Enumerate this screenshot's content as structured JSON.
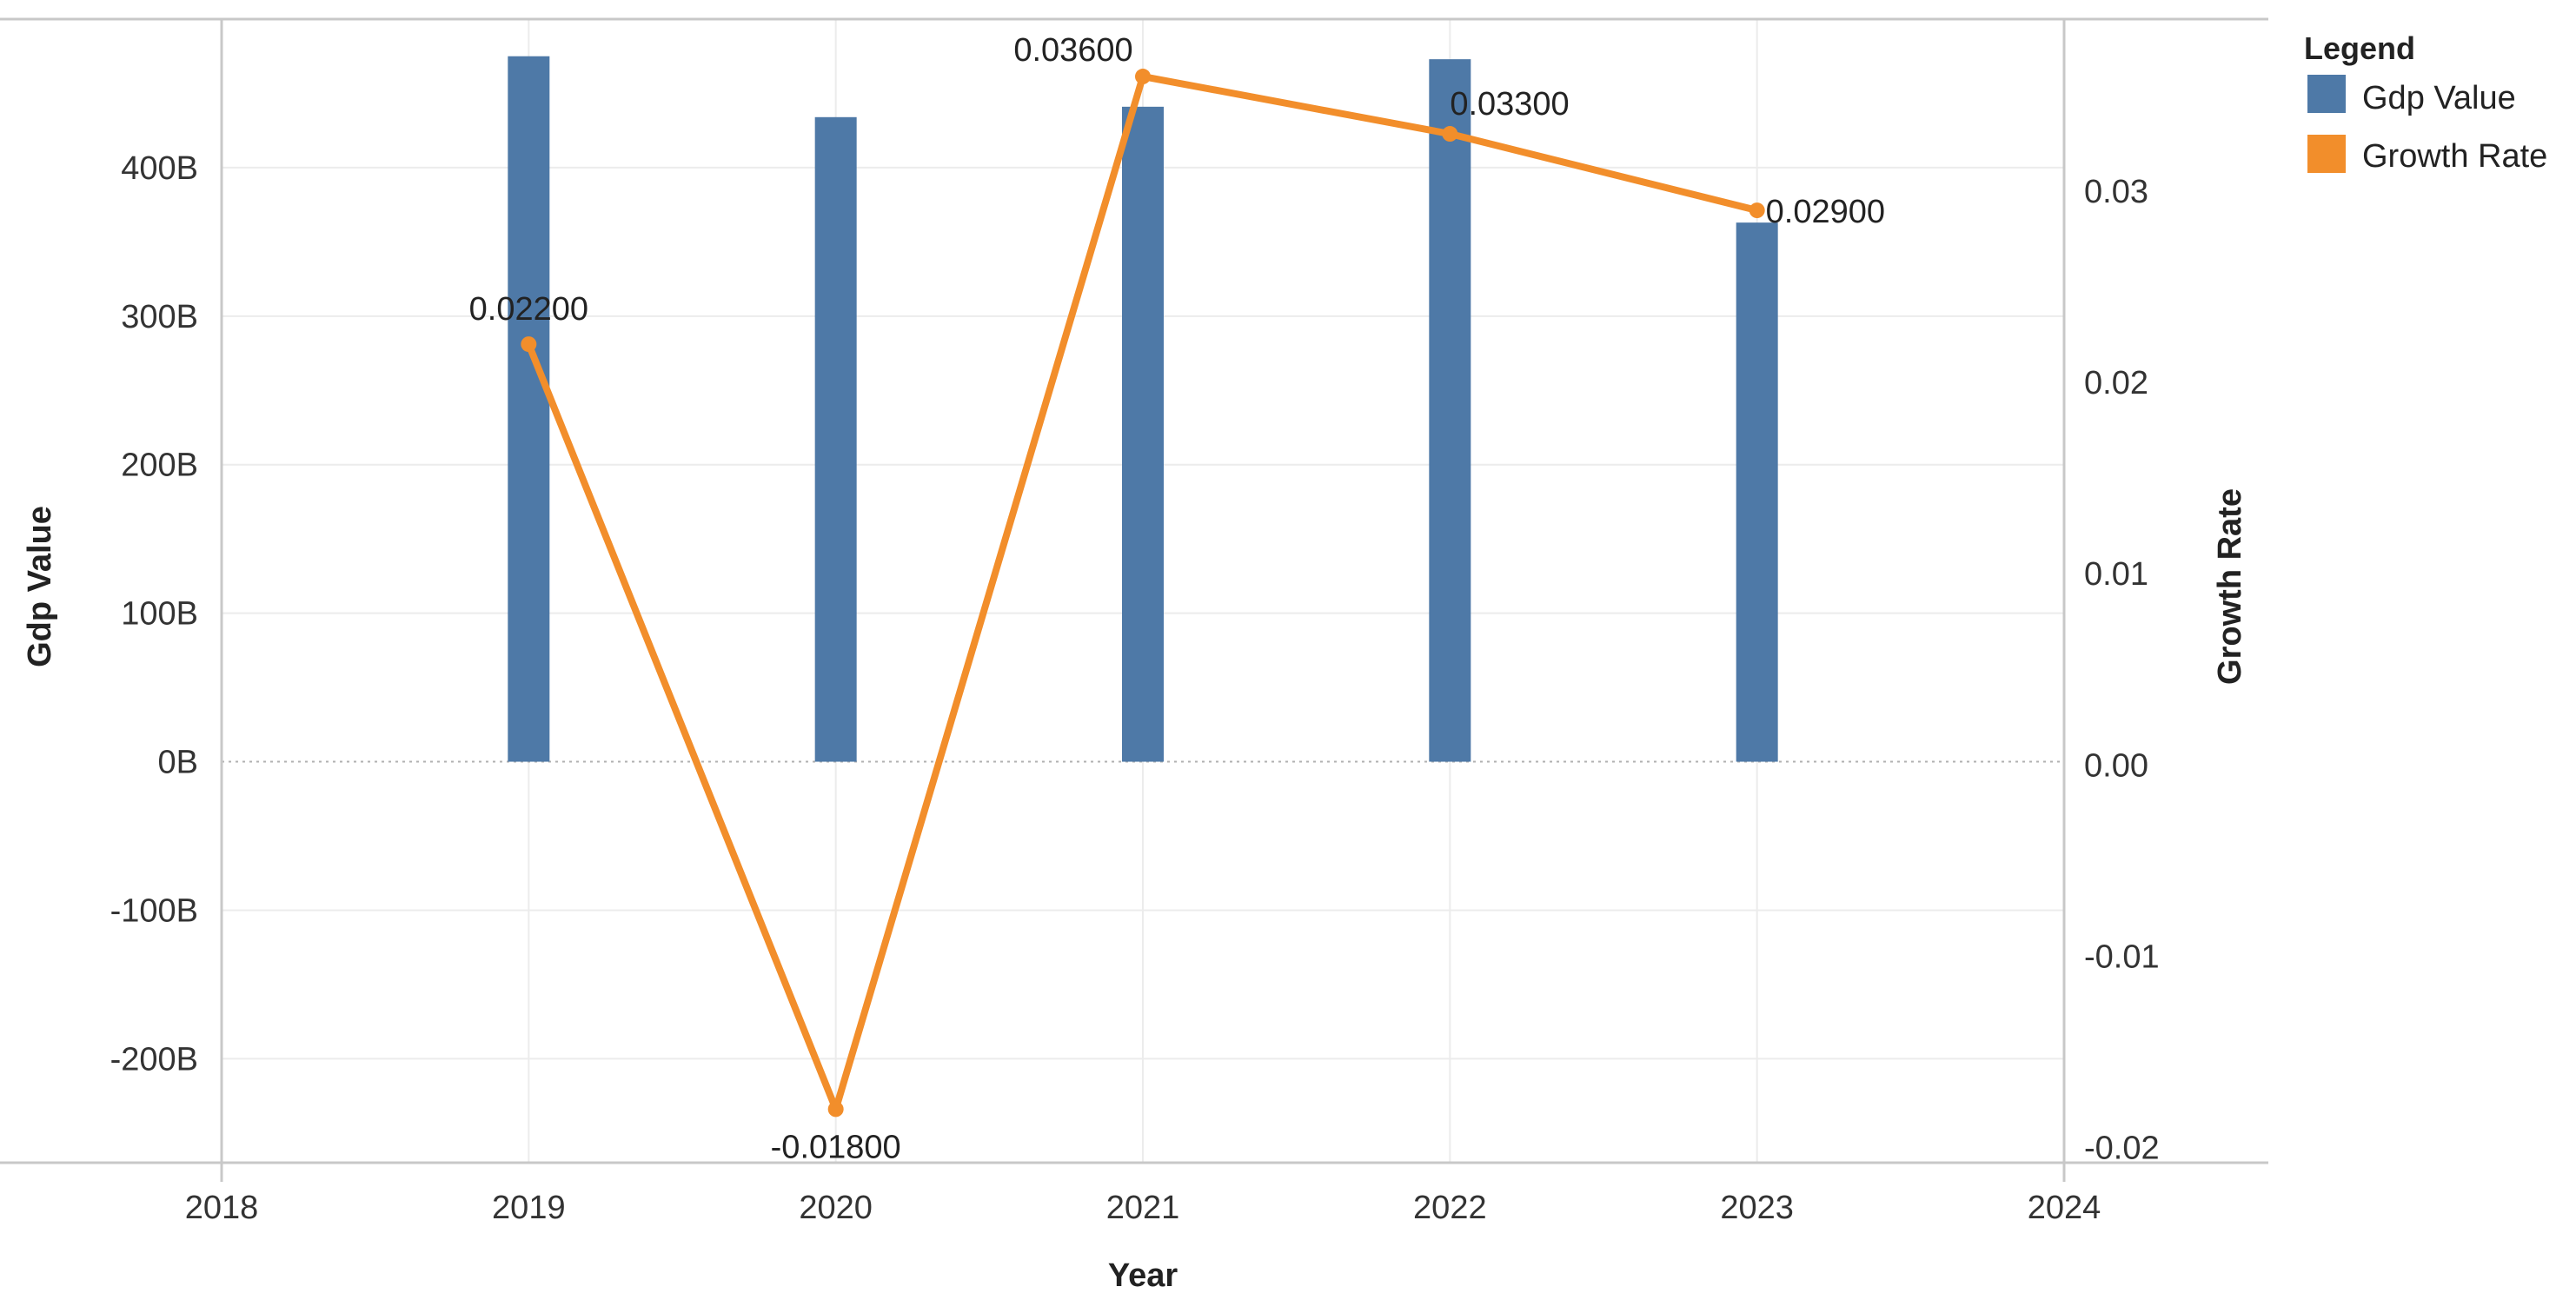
{
  "chart_data": {
    "type": "bar+line",
    "x_label": "Year",
    "x_ticks": [
      "2018",
      "2019",
      "2020",
      "2021",
      "2022",
      "2023",
      "2024"
    ],
    "xlim": [
      2018,
      2024
    ],
    "y_left": {
      "label": "Gdp Value",
      "ylim": [
        -270,
        500
      ],
      "tick_values": [
        -200,
        -100,
        0,
        100,
        200,
        300,
        400
      ],
      "tick_labels": [
        "-200B",
        "-100B",
        "0B",
        "100B",
        "200B",
        "300B",
        "400B"
      ]
    },
    "y_right": {
      "label": "Growth Rate",
      "ylim": [
        -0.0208,
        0.039
      ],
      "tick_values": [
        -0.02,
        -0.01,
        0.0,
        0.01,
        0.02,
        0.03
      ],
      "tick_labels": [
        "-0.02",
        "-0.01",
        "0.00",
        "0.01",
        "0.02",
        "0.03"
      ]
    },
    "series": [
      {
        "name": "Gdp Value",
        "type": "bar",
        "axis": "left",
        "color": "#4e79a7",
        "x": [
          2019,
          2020,
          2021,
          2022,
          2023
        ],
        "values": [
          475,
          434,
          441,
          473,
          363
        ]
      },
      {
        "name": "Growth Rate",
        "type": "line",
        "axis": "right",
        "color": "#f28e2b",
        "x": [
          2019,
          2020,
          2021,
          2022,
          2023
        ],
        "values": [
          0.022,
          -0.018,
          0.036,
          0.033,
          0.029
        ],
        "labels": [
          "0.02200",
          "-0.01800",
          "0.03600",
          "0.03300",
          "0.02900"
        ]
      }
    ],
    "legend": {
      "title": "Legend",
      "position": "top-right",
      "items": [
        {
          "label": "Gdp Value",
          "color": "#4e79a7"
        },
        {
          "label": "Growth Rate",
          "color": "#f28e2b"
        }
      ]
    },
    "grid": true
  }
}
